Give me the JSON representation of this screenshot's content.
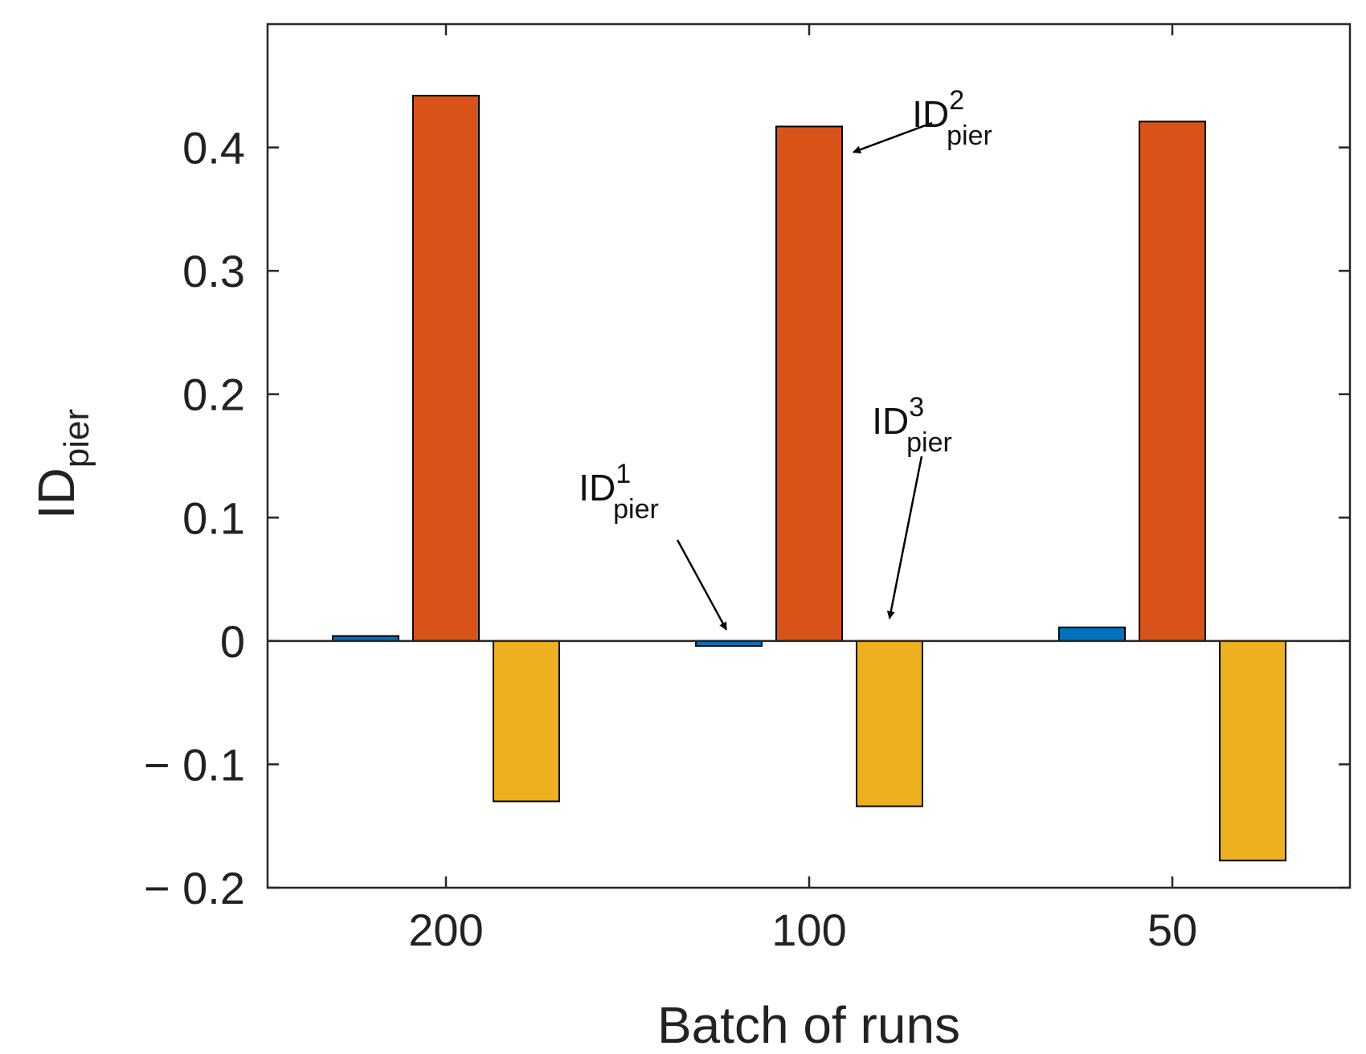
{
  "chart_data": {
    "type": "bar",
    "categories": [
      "200",
      "100",
      "50"
    ],
    "series": [
      {
        "name": "ID1_pier",
        "color": "#0072BD",
        "values": [
          0.004,
          -0.004,
          0.011
        ]
      },
      {
        "name": "ID2_pier",
        "color": "#D95319",
        "values": [
          0.442,
          0.417,
          0.421
        ]
      },
      {
        "name": "ID3_pier",
        "color": "#EDB120",
        "values": [
          -0.13,
          -0.134,
          -0.178
        ]
      }
    ],
    "title": "",
    "xlabel": "Batch of runs",
    "ylabel": {
      "main": "ID",
      "sub": "pier"
    },
    "ylim": [
      -0.2,
      0.5
    ],
    "yticks": [
      -0.2,
      -0.1,
      0,
      0.1,
      0.2,
      0.3,
      0.4
    ],
    "ytick_labels": [
      "− 0.2",
      "− 0.1",
      "0",
      "0.1",
      "0.2",
      "0.3",
      "0.4"
    ],
    "grid": false,
    "annotations": [
      {
        "main": "ID",
        "sup": "1",
        "sub": "pier",
        "series": 0,
        "category": 1
      },
      {
        "main": "ID",
        "sup": "2",
        "sub": "pier",
        "series": 1,
        "category": 1
      },
      {
        "main": "ID",
        "sup": "3",
        "sub": "pier",
        "series": 2,
        "category": 1
      }
    ]
  }
}
